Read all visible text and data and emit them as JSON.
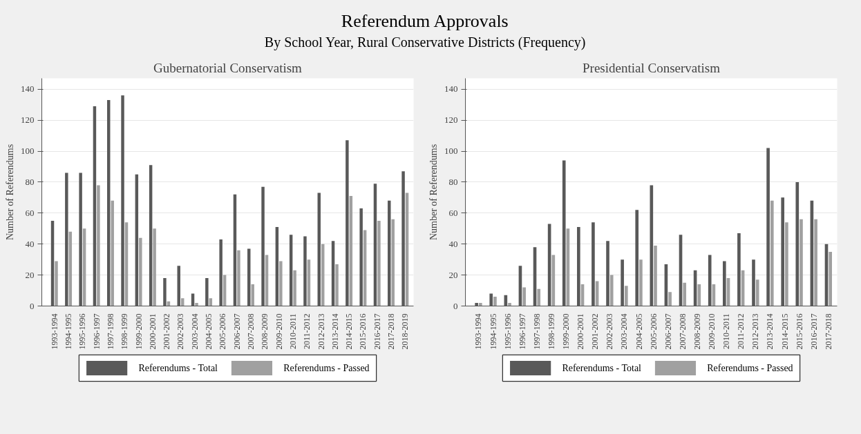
{
  "chart_data": [
    {
      "type": "bar",
      "title": "Gubernatorial Conservatism",
      "ylabel": "Number of Referendums",
      "annotations": [
        "Referendum Approvals",
        "By School Year, Rural Conservative Districts (Frequency)"
      ],
      "categories": [
        "1993-1994",
        "1994-1995",
        "1995-1996",
        "1996-1997",
        "1997-1998",
        "1998-1999",
        "1999-2000",
        "2000-2001",
        "2001-2002",
        "2002-2003",
        "2003-2004",
        "2004-2005",
        "2005-2006",
        "2006-2007",
        "2007-2008",
        "2008-2009",
        "2009-2010",
        "2010-2011",
        "2011-2012",
        "2012-2013",
        "2013-2014",
        "2014-2015",
        "2015-2016",
        "2016-2017",
        "2017-2018",
        "2018-2019"
      ],
      "series": [
        {
          "name": "Referendums - Total",
          "color": "#595959",
          "values": [
            55,
            86,
            86,
            129,
            133,
            136,
            85,
            91,
            18,
            26,
            8,
            18,
            43,
            72,
            37,
            77,
            51,
            46,
            45,
            73,
            42,
            107,
            63,
            79,
            68,
            87
          ]
        },
        {
          "name": "Referendums - Passed",
          "color": "#a0a0a0",
          "values": [
            29,
            48,
            50,
            78,
            68,
            54,
            44,
            50,
            3,
            5,
            2,
            5,
            20,
            36,
            14,
            33,
            29,
            23,
            30,
            40,
            27,
            71,
            49,
            55,
            56,
            73
          ]
        }
      ],
      "ylim": [
        0,
        147
      ],
      "yticks": [
        0,
        20,
        40,
        60,
        80,
        100,
        120,
        140
      ],
      "grid": "y",
      "legend": "bottom"
    },
    {
      "type": "bar",
      "title": "Presidential Conservatism",
      "ylabel": "Number of Referendums",
      "categories": [
        "1993-1994",
        "1994-1995",
        "1995-1996",
        "1996-1997",
        "1997-1998",
        "1998-1999",
        "1999-2000",
        "2000-2001",
        "2001-2002",
        "2002-2003",
        "2003-2004",
        "2004-2005",
        "2005-2006",
        "2006-2007",
        "2007-2008",
        "2008-2009",
        "2009-2010",
        "2010-2011",
        "2011-2012",
        "2012-2013",
        "2013-2014",
        "2014-2015",
        "2015-2016",
        "2016-2017",
        "2017-2018"
      ],
      "series": [
        {
          "name": "Referendums - Total",
          "color": "#595959",
          "values": [
            2,
            8,
            7,
            26,
            38,
            53,
            94,
            51,
            54,
            42,
            30,
            62,
            78,
            27,
            46,
            23,
            33,
            29,
            47,
            30,
            102,
            70,
            80,
            68,
            40
          ]
        },
        {
          "name": "Referendums - Passed",
          "color": "#a0a0a0",
          "values": [
            2,
            6,
            2,
            12,
            11,
            33,
            50,
            14,
            16,
            20,
            13,
            30,
            39,
            9,
            15,
            14,
            14,
            18,
            23,
            17,
            68,
            54,
            56,
            56,
            35
          ]
        }
      ],
      "ylim": [
        0,
        147
      ],
      "yticks": [
        0,
        20,
        40,
        60,
        80,
        100,
        120,
        140
      ],
      "grid": "y",
      "legend": "bottom"
    }
  ]
}
